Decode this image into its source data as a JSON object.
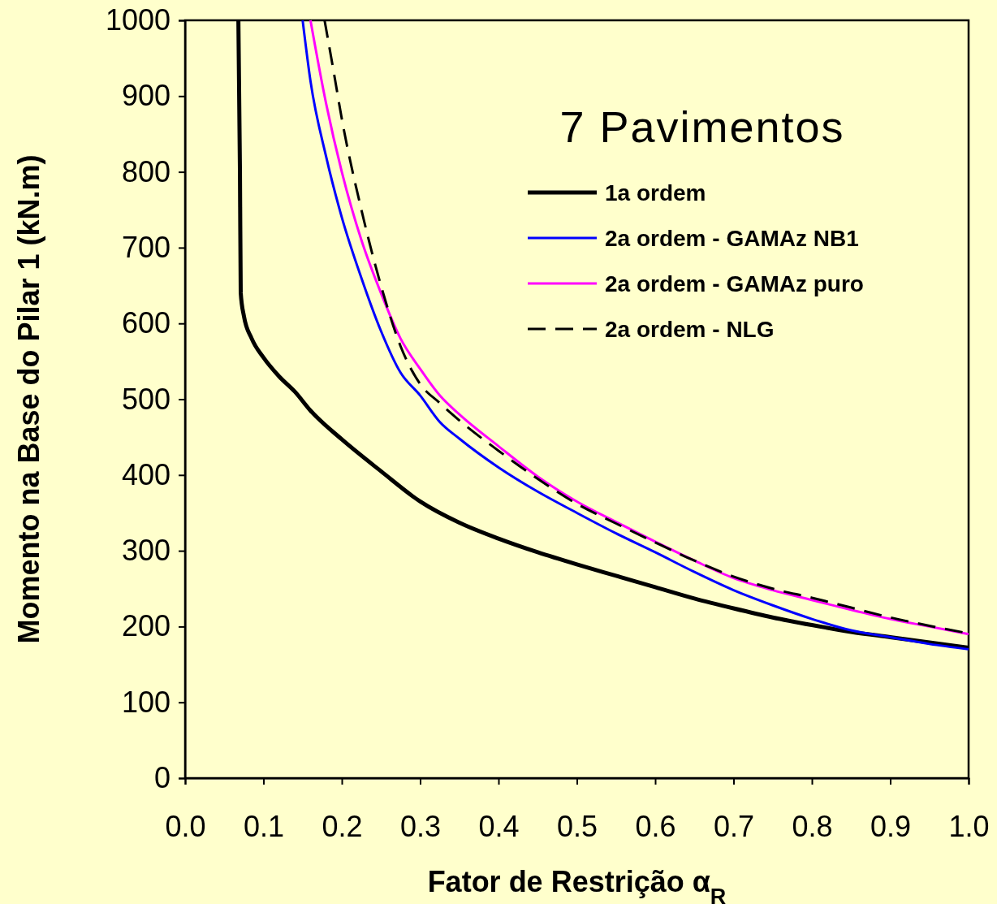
{
  "chart_data": {
    "type": "line",
    "title": "7 Pavimentos",
    "xlabel": "Fator de Restrição α$_{R}$",
    "ylabel": "Momento na Base do Pilar 1 (kN.m)",
    "xlim": [
      0,
      1
    ],
    "xticks": [
      {
        "value": 0,
        "label": "0.0"
      },
      0.1,
      0.2,
      0.3,
      0.4,
      0.5,
      0.6,
      0.7,
      0.8,
      0.9,
      {
        "value": 1,
        "label": "1.0"
      }
    ],
    "ylim": [
      0,
      1000
    ],
    "yticks": [
      0,
      100,
      200,
      300,
      400,
      500,
      600,
      700,
      800,
      900,
      1000
    ],
    "grid": false,
    "legend": "top right",
    "marker": "none",
    "series": [
      {
        "name": "1a ordem",
        "color": "#000000",
        "line_style": "solid",
        "x": [
          0.068,
          0.07,
          0.071,
          0.075,
          0.085,
          0.1,
          0.12,
          0.14,
          0.16,
          0.2,
          0.25,
          0.3,
          0.35,
          0.4,
          0.45,
          0.5,
          0.55,
          0.6,
          0.65,
          0.7,
          0.75,
          0.8,
          0.85,
          0.9,
          0.95,
          1.0
        ],
        "values": [
          1000,
          800,
          640,
          610,
          580,
          555,
          530,
          510,
          485,
          447,
          405,
          365,
          337,
          316,
          298,
          282,
          267,
          252,
          237,
          224,
          212,
          202,
          193,
          186,
          179,
          172
        ]
      },
      {
        "name": "2a ordem - GAMAz NB1",
        "color": "#0000ff",
        "line_style": "solid",
        "x": [
          0.15,
          0.16,
          0.18,
          0.2,
          0.225,
          0.25,
          0.275,
          0.3,
          0.325,
          0.35,
          0.4,
          0.45,
          0.5,
          0.55,
          0.6,
          0.65,
          0.7,
          0.75,
          0.8,
          0.85,
          0.9,
          0.95,
          1.0
        ],
        "values": [
          1000,
          920,
          820,
          740,
          660,
          590,
          535,
          505,
          470,
          448,
          410,
          378,
          350,
          323,
          298,
          272,
          248,
          228,
          210,
          195,
          186,
          177,
          170
        ]
      },
      {
        "name": "2a ordem - GAMAz puro",
        "color": "#ff00ff",
        "line_style": "solid",
        "x": [
          0.16,
          0.18,
          0.2,
          0.225,
          0.25,
          0.275,
          0.3,
          0.325,
          0.35,
          0.4,
          0.45,
          0.5,
          0.55,
          0.6,
          0.65,
          0.7,
          0.75,
          0.8,
          0.85,
          0.9,
          0.95,
          1.0
        ],
        "values": [
          1000,
          890,
          800,
          710,
          640,
          580,
          540,
          505,
          480,
          438,
          398,
          365,
          338,
          312,
          287,
          264,
          248,
          235,
          222,
          210,
          200,
          190
        ]
      },
      {
        "name": "2a ordem - NLG",
        "color": "#000000",
        "line_style": "dashed",
        "x": [
          0.178,
          0.19,
          0.2,
          0.225,
          0.25,
          0.275,
          0.3,
          0.325,
          0.35,
          0.4,
          0.45,
          0.5,
          0.55,
          0.6,
          0.65,
          0.7,
          0.75,
          0.8,
          0.85,
          0.9,
          0.95,
          1.0
        ],
        "values": [
          1000,
          930,
          870,
          750,
          650,
          570,
          520,
          495,
          472,
          432,
          395,
          362,
          336,
          311,
          287,
          266,
          250,
          238,
          225,
          212,
          201,
          191
        ]
      }
    ]
  }
}
